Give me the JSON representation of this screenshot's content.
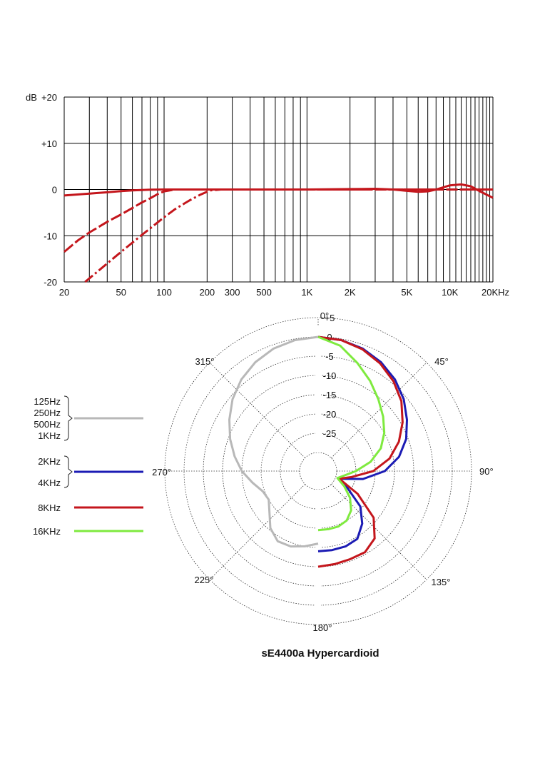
{
  "chart_data": [
    {
      "type": "line",
      "ylabel": "dB",
      "x_scale": "log",
      "xlim": [
        20,
        20000
      ],
      "ylim": [
        -20,
        20
      ],
      "y_ticks": [
        {
          "value": 20,
          "label": "+20"
        },
        {
          "value": 10,
          "label": "+10"
        },
        {
          "value": 0,
          "label": "0"
        },
        {
          "value": -10,
          "label": "-10"
        },
        {
          "value": -20,
          "label": "-20"
        }
      ],
      "x_ticks": [
        {
          "value": 20,
          "label": "20"
        },
        {
          "value": 50,
          "label": "50"
        },
        {
          "value": 100,
          "label": "100"
        },
        {
          "value": 200,
          "label": "200"
        },
        {
          "value": 300,
          "label": "300"
        },
        {
          "value": 500,
          "label": "500"
        },
        {
          "value": 1000,
          "label": "1K"
        },
        {
          "value": 2000,
          "label": "2K"
        },
        {
          "value": 5000,
          "label": "5K"
        },
        {
          "value": 10000,
          "label": "10K"
        },
        {
          "value": 20000,
          "label": "20KHz"
        }
      ],
      "grid": true,
      "series": [
        {
          "style": "solid",
          "color": "#c4161c",
          "x": [
            20,
            30,
            40,
            50,
            60,
            80,
            100,
            150,
            200,
            500,
            1000,
            2000,
            3000,
            4000,
            5000,
            6000,
            7000,
            8000,
            10000,
            12000,
            14000,
            16000,
            20000
          ],
          "y": [
            -1.3,
            -0.9,
            -0.6,
            -0.35,
            -0.2,
            -0.05,
            0,
            0,
            0,
            0,
            0,
            0.1,
            0.15,
            0,
            -0.3,
            -0.5,
            -0.4,
            0,
            0.9,
            1.1,
            0.7,
            -0.3,
            -1.8
          ]
        },
        {
          "style": "dashed",
          "color": "#c4161c",
          "x": [
            20,
            25,
            30,
            40,
            50,
            60,
            70,
            80,
            90,
            100,
            120,
            150,
            500,
            20000
          ],
          "y": [
            -13.5,
            -11,
            -9.3,
            -7,
            -5.4,
            -4,
            -2.8,
            -1.9,
            -1,
            -0.4,
            0,
            0,
            0,
            0
          ]
        },
        {
          "style": "dash-dot",
          "color": "#c4161c",
          "x": [
            28,
            35,
            40,
            50,
            60,
            70,
            80,
            100,
            120,
            150,
            180,
            210,
            250,
            500,
            20000
          ],
          "y": [
            -20,
            -17.5,
            -16,
            -13.5,
            -11.5,
            -9.8,
            -8.4,
            -6,
            -4.2,
            -2.4,
            -1.1,
            -0.2,
            0,
            0,
            0
          ]
        }
      ]
    },
    {
      "type": "polar",
      "title": "sE4400a  Hypercardioid",
      "r_ticks": [
        "+5",
        "0",
        "-5",
        "-10",
        "-15",
        "-20",
        "-25"
      ],
      "r_values": [
        5,
        0,
        -5,
        -10,
        -15,
        -20,
        -25
      ],
      "r_range": [
        -30,
        5
      ],
      "angle_labels": [
        "0°",
        "45°",
        "90°",
        "135°",
        "180°",
        "225°",
        "270°",
        "315°"
      ],
      "angle_values": [
        0,
        45,
        90,
        135,
        180,
        225,
        270,
        315
      ],
      "legend": [
        {
          "labels": [
            "125Hz",
            "250Hz",
            "500Hz",
            "1KHz"
          ],
          "color": "#b8b8b8"
        },
        {
          "labels": [
            "2KHz",
            "4KHz"
          ],
          "color": "#1b1bb4"
        },
        {
          "labels": [
            "8KHz"
          ],
          "color": "#c4161c"
        },
        {
          "labels": [
            "16KHz"
          ],
          "color": "#7fea3f"
        }
      ],
      "series": [
        {
          "color": "#b8b8b8",
          "angles": [
            0,
            -10,
            -20,
            -30,
            -40,
            -50,
            -60,
            -70,
            -80,
            -90,
            -100,
            -110,
            -120,
            -130,
            -140,
            -150,
            -160,
            -170,
            -180
          ],
          "levels": [
            0,
            -0.3,
            -1,
            -2.2,
            -3.8,
            -5.8,
            -8.2,
            -10.5,
            -12.8,
            -15,
            -17.5,
            -19.5,
            -20,
            -18.3,
            -15.5,
            -13.8,
            -14,
            -15,
            -16
          ]
        },
        {
          "color": "#1b1bb4",
          "angles": [
            0,
            10,
            20,
            30,
            40,
            50,
            60,
            70,
            80,
            90,
            100,
            110,
            120,
            130,
            140,
            150,
            160,
            170,
            180
          ],
          "levels": [
            0,
            -0.3,
            -1,
            -2.2,
            -3.8,
            -5.8,
            -8.2,
            -10.5,
            -13.5,
            -17.5,
            -23,
            -29,
            -26,
            -20.5,
            -17,
            -14.5,
            -14,
            -14,
            -14
          ]
        },
        {
          "color": "#c4161c",
          "angles": [
            0,
            10,
            20,
            30,
            40,
            50,
            60,
            70,
            80,
            90,
            100,
            110,
            120,
            130,
            140,
            150,
            160,
            170,
            180
          ],
          "levels": [
            0,
            -0.3,
            -1.2,
            -2.6,
            -4.4,
            -6.6,
            -9.5,
            -12.5,
            -16,
            -20.5,
            -26,
            -29,
            -23,
            -16,
            -12,
            -10.5,
            -10.5,
            -10.3,
            -10
          ]
        },
        {
          "color": "#7fea3f",
          "angles": [
            0,
            10,
            20,
            30,
            40,
            50,
            60,
            70,
            80,
            90,
            100,
            110,
            120,
            130,
            140,
            150,
            160,
            170,
            180
          ],
          "levels": [
            0,
            -1.8,
            -5,
            -7.8,
            -10.5,
            -12.8,
            -15,
            -17.5,
            -21,
            -25,
            -28,
            -29.5,
            -27,
            -24,
            -21.5,
            -20,
            -19.5,
            -19.5,
            -19.5
          ]
        }
      ]
    }
  ]
}
